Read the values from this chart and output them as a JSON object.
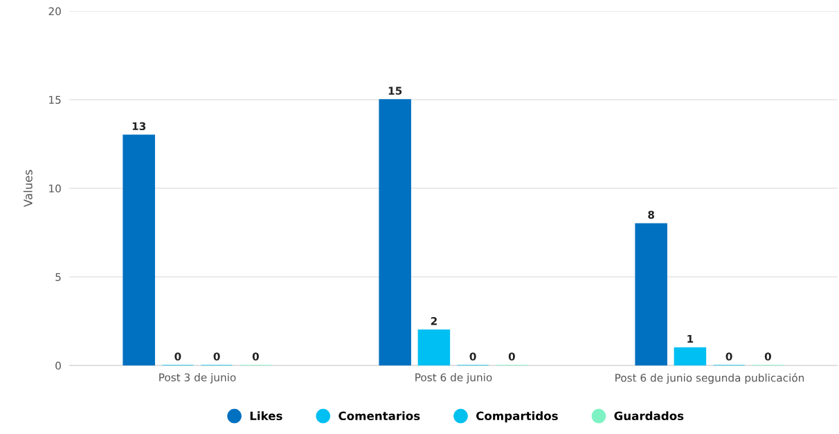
{
  "chart_data": {
    "type": "bar",
    "ylabel": "Values",
    "categories": [
      "Post 3 de junio",
      "Post 6 de junio",
      "Post 6 de junio segunda publicación"
    ],
    "series": [
      {
        "name": "Likes",
        "color": "#0070c0",
        "values": [
          13,
          15,
          8
        ]
      },
      {
        "name": "Comentarios",
        "color": "#00bff2",
        "values": [
          0,
          2,
          1
        ]
      },
      {
        "name": "Compartidos",
        "color": "#00c0ee",
        "values": [
          0,
          0,
          0
        ]
      },
      {
        "name": "Guardados",
        "color": "#7ff2c4",
        "values": [
          0,
          0,
          0
        ]
      }
    ],
    "ylim": [
      0,
      20
    ],
    "yticks": [
      0,
      5,
      10,
      15,
      20
    ],
    "grid": "y",
    "legend": "bottom",
    "data_labels": true
  }
}
